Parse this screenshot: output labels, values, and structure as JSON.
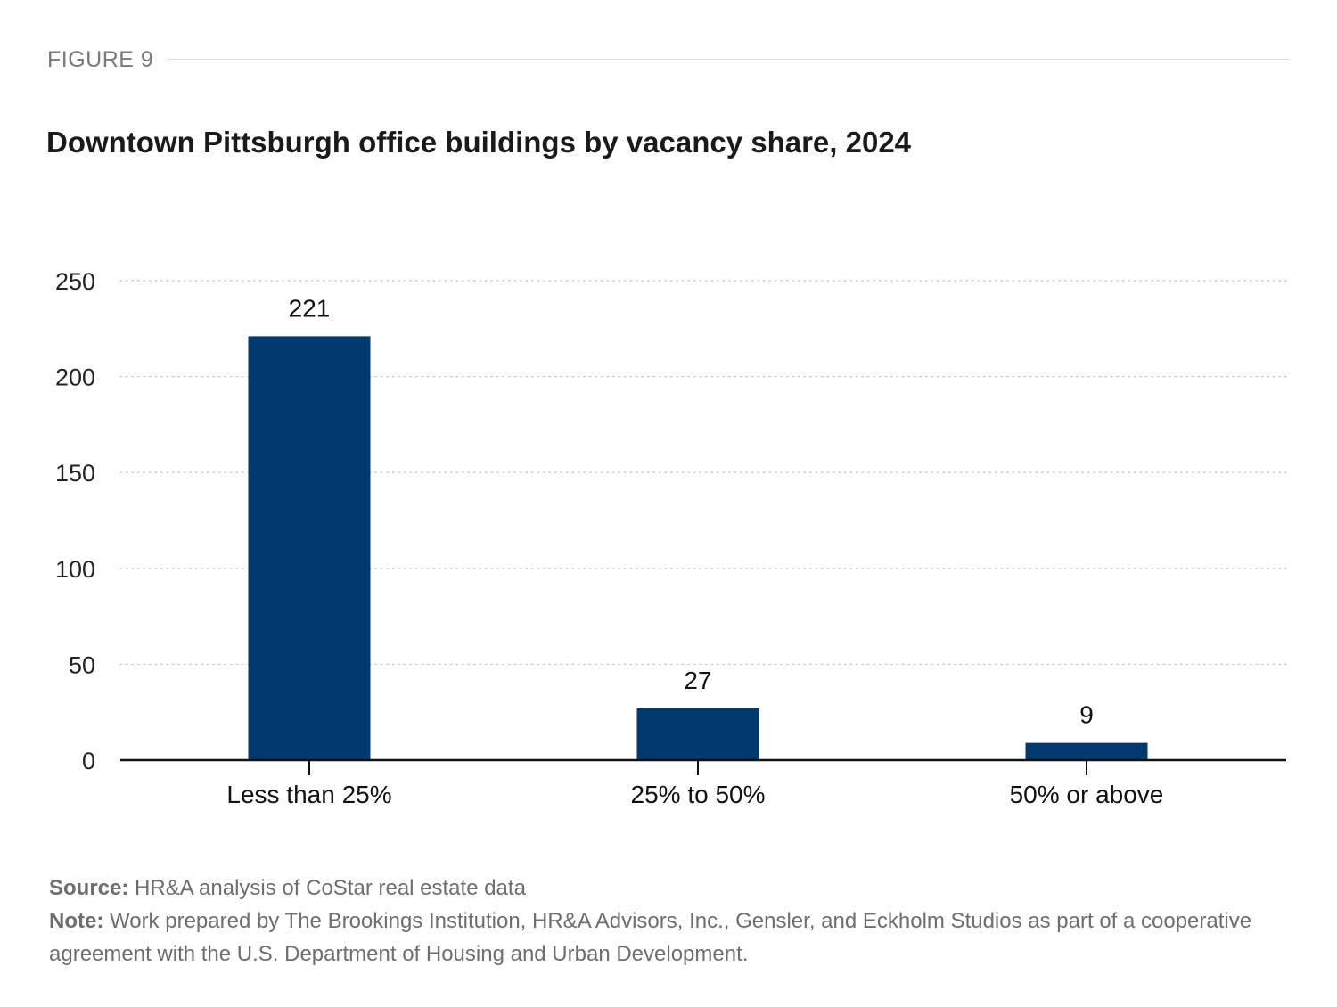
{
  "figure_label": "FIGURE 9",
  "chart_data": {
    "type": "bar",
    "title": "Downtown Pittsburgh office buildings by vacancy share, 2024",
    "categories": [
      "Less than 25%",
      "25% to 50%",
      "50% or above"
    ],
    "values": [
      221,
      27,
      9
    ],
    "data_labels": [
      "221",
      "27",
      "9"
    ],
    "xlabel": "",
    "ylabel": "",
    "ylim": [
      0,
      250
    ],
    "yticks": [
      0,
      50,
      100,
      150,
      200,
      250
    ],
    "ytick_labels": [
      "0",
      "50",
      "100",
      "150",
      "200",
      "250"
    ],
    "grid": "horizontal dotted",
    "legend": "none",
    "bar_color": "#013a6f"
  },
  "footer": {
    "source_label": "Source:",
    "source_text": " HR&A analysis of CoStar real estate data",
    "note_label": "Note:",
    "note_text": " Work prepared by The Brookings Institution, HR&A Advisors, Inc., Gensler, and Eckholm Studios as part of a cooperative agreement with the U.S. Department of Housing and Urban Development."
  }
}
